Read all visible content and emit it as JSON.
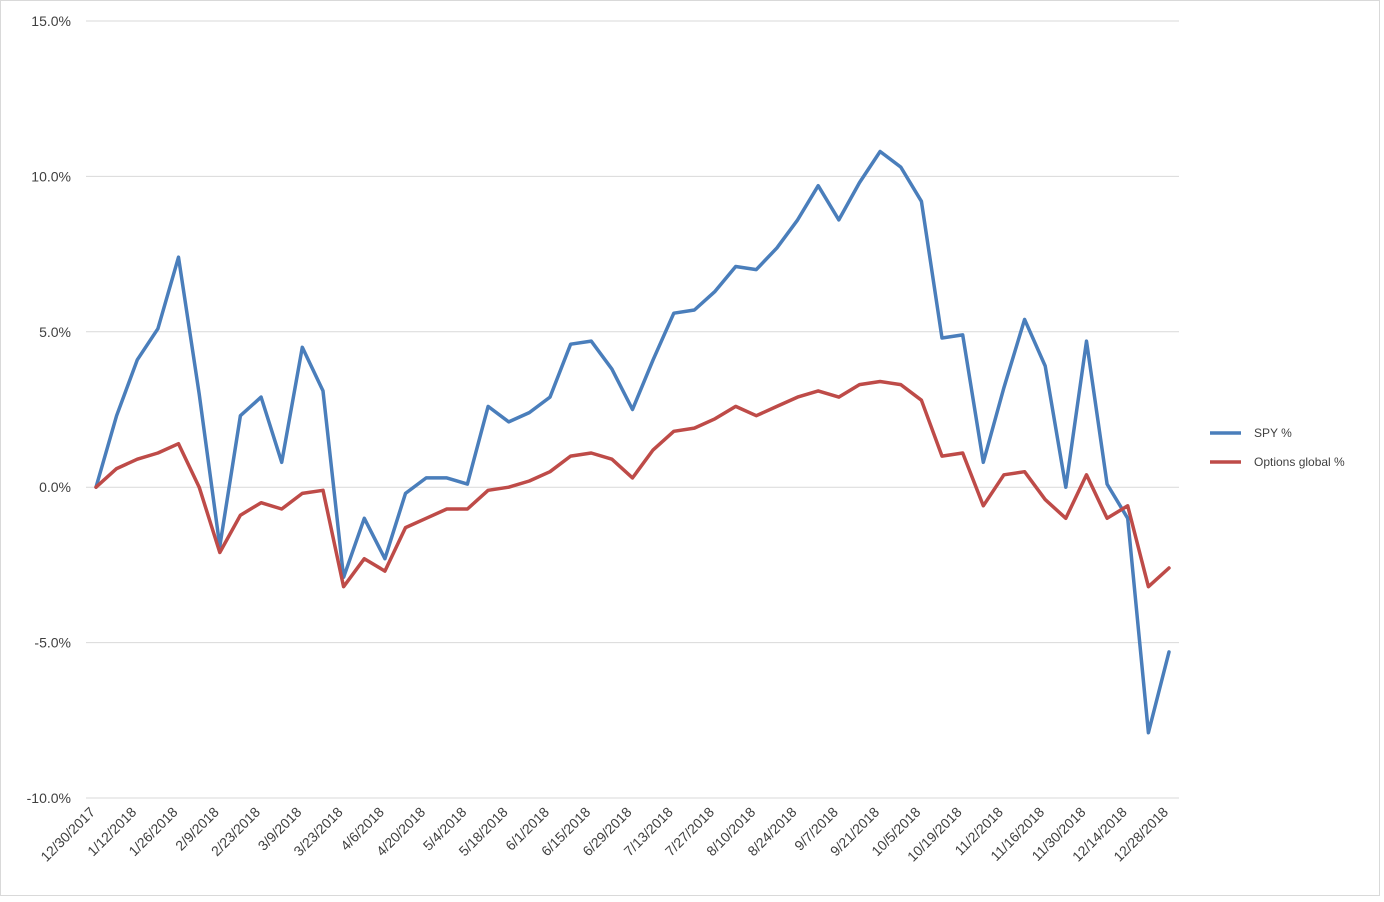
{
  "chart_data": {
    "type": "line",
    "x": [
      "12/30/2017",
      "1/5/2018",
      "1/12/2018",
      "1/19/2018",
      "1/26/2018",
      "2/2/2018",
      "2/9/2018",
      "2/16/2018",
      "2/23/2018",
      "3/2/2018",
      "3/9/2018",
      "3/16/2018",
      "3/23/2018",
      "3/30/2018",
      "4/6/2018",
      "4/13/2018",
      "4/20/2018",
      "4/27/2018",
      "5/4/2018",
      "5/11/2018",
      "5/18/2018",
      "5/25/2018",
      "6/1/2018",
      "6/8/2018",
      "6/15/2018",
      "6/22/2018",
      "6/29/2018",
      "7/6/2018",
      "7/13/2018",
      "7/20/2018",
      "7/27/2018",
      "8/3/2018",
      "8/10/2018",
      "8/17/2018",
      "8/24/2018",
      "8/31/2018",
      "9/7/2018",
      "9/14/2018",
      "9/21/2018",
      "9/28/2018",
      "10/5/2018",
      "10/12/2018",
      "10/19/2018",
      "10/26/2018",
      "11/2/2018",
      "11/9/2018",
      "11/16/2018",
      "11/23/2018",
      "11/30/2018",
      "12/7/2018",
      "12/14/2018",
      "12/21/2018",
      "12/28/2018"
    ],
    "tick_labels": [
      "12/30/2017",
      "1/12/2018",
      "1/26/2018",
      "2/9/2018",
      "2/23/2018",
      "3/9/2018",
      "3/23/2018",
      "4/6/2018",
      "4/20/2018",
      "5/4/2018",
      "5/18/2018",
      "6/1/2018",
      "6/15/2018",
      "6/29/2018",
      "7/13/2018",
      "7/27/2018",
      "8/10/2018",
      "8/24/2018",
      "9/7/2018",
      "9/21/2018",
      "10/5/2018",
      "10/19/2018",
      "11/2/2018",
      "11/16/2018",
      "11/30/2018",
      "12/14/2018",
      "12/28/2018"
    ],
    "y_tick_labels": [
      "15.0%",
      "10.0%",
      "5.0%",
      "0.0%",
      "-5.0%",
      "-10.0%"
    ],
    "ylim": [
      -10,
      15
    ],
    "y_ticks": [
      15,
      10,
      5,
      0,
      -5,
      -10
    ],
    "grid": true,
    "legend_position": "right",
    "series": [
      {
        "name": "SPY %",
        "color": "#4a7ebb",
        "values": [
          0,
          2.3,
          4.1,
          5.1,
          7.4,
          3.0,
          -1.9,
          2.3,
          2.9,
          0.8,
          4.5,
          3.1,
          -2.9,
          -1.0,
          -2.3,
          -0.2,
          0.3,
          0.3,
          0.1,
          2.6,
          2.1,
          2.4,
          2.9,
          4.6,
          4.7,
          3.8,
          2.5,
          4.1,
          5.6,
          5.7,
          6.3,
          7.1,
          7.0,
          7.7,
          8.6,
          9.7,
          8.6,
          9.8,
          10.8,
          10.3,
          9.2,
          4.8,
          4.9,
          0.8,
          3.2,
          5.4,
          3.9,
          0.0,
          4.7,
          0.1,
          -1.0,
          -7.9,
          -5.3
        ]
      },
      {
        "name": "Options global %",
        "color": "#be4b48",
        "values": [
          0,
          0.6,
          0.9,
          1.1,
          1.4,
          0.0,
          -2.1,
          -0.9,
          -0.5,
          -0.7,
          -0.2,
          -0.1,
          -3.2,
          -2.3,
          -2.7,
          -1.3,
          -1.0,
          -0.7,
          -0.7,
          -0.1,
          0.0,
          0.2,
          0.5,
          1.0,
          1.1,
          0.9,
          0.3,
          1.2,
          1.8,
          1.9,
          2.2,
          2.6,
          2.3,
          2.6,
          2.9,
          3.1,
          2.9,
          3.3,
          3.4,
          3.3,
          2.8,
          1.0,
          1.1,
          -0.6,
          0.4,
          0.5,
          -0.4,
          -1.0,
          0.4,
          -1.0,
          -0.6,
          -3.2,
          -2.6
        ]
      }
    ]
  }
}
